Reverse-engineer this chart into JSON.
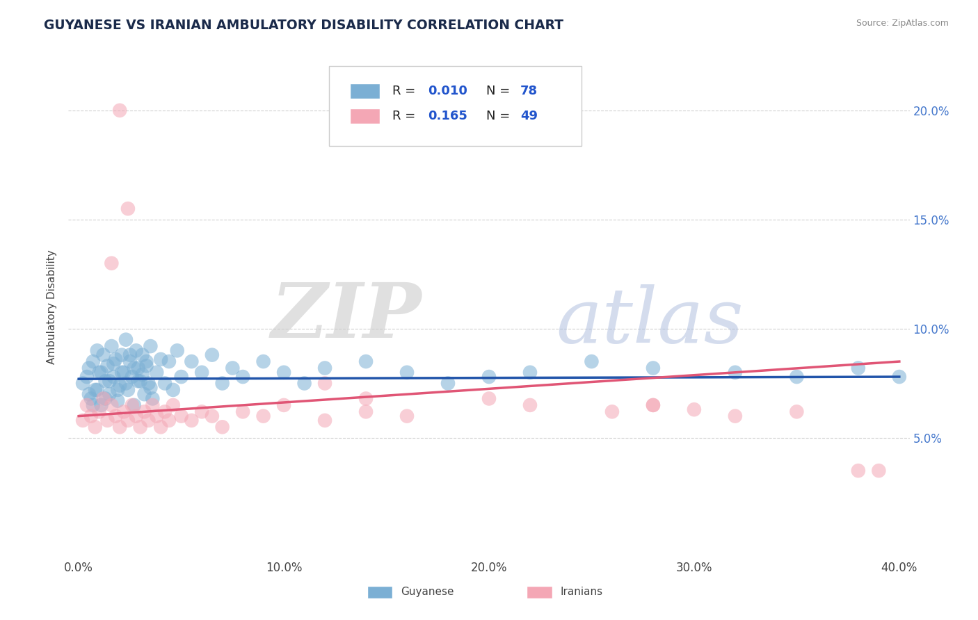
{
  "title": "GUYANESE VS IRANIAN AMBULATORY DISABILITY CORRELATION CHART",
  "source": "Source: ZipAtlas.com",
  "ylabel": "Ambulatory Disability",
  "xlim": [
    -0.005,
    0.405
  ],
  "ylim": [
    -0.005,
    0.225
  ],
  "xticks": [
    0.0,
    0.1,
    0.2,
    0.3,
    0.4
  ],
  "xtick_labels": [
    "0.0%",
    "10.0%",
    "20.0%",
    "30.0%",
    "40.0%"
  ],
  "yticks": [
    0.05,
    0.1,
    0.15,
    0.2
  ],
  "ytick_labels": [
    "5.0%",
    "10.0%",
    "15.0%",
    "20.0%"
  ],
  "blue_color": "#7BAFD4",
  "pink_color": "#F4A7B5",
  "blue_line_color": "#2255AA",
  "pink_line_color": "#E05575",
  "blue_dash_color": "#8899BB",
  "watermark_zip": "ZIP",
  "watermark_atlas": "atlas",
  "blue_R": "0.010",
  "blue_N": "78",
  "pink_R": "0.165",
  "pink_N": "49",
  "blue_x": [
    0.002,
    0.004,
    0.005,
    0.006,
    0.007,
    0.008,
    0.009,
    0.01,
    0.011,
    0.012,
    0.013,
    0.014,
    0.015,
    0.016,
    0.017,
    0.018,
    0.019,
    0.02,
    0.021,
    0.022,
    0.023,
    0.024,
    0.025,
    0.026,
    0.027,
    0.028,
    0.029,
    0.03,
    0.031,
    0.032,
    0.033,
    0.034,
    0.035,
    0.036,
    0.038,
    0.04,
    0.042,
    0.044,
    0.046,
    0.048,
    0.05,
    0.055,
    0.06,
    0.065,
    0.07,
    0.075,
    0.08,
    0.09,
    0.1,
    0.11,
    0.005,
    0.007,
    0.009,
    0.011,
    0.013,
    0.015,
    0.017,
    0.019,
    0.021,
    0.023,
    0.025,
    0.027,
    0.029,
    0.031,
    0.033,
    0.035,
    0.12,
    0.14,
    0.16,
    0.18,
    0.2,
    0.22,
    0.25,
    0.28,
    0.32,
    0.35,
    0.38,
    0.4
  ],
  "blue_y": [
    0.075,
    0.078,
    0.082,
    0.068,
    0.085,
    0.072,
    0.09,
    0.08,
    0.065,
    0.088,
    0.076,
    0.083,
    0.07,
    0.092,
    0.078,
    0.086,
    0.067,
    0.074,
    0.088,
    0.08,
    0.095,
    0.072,
    0.085,
    0.078,
    0.065,
    0.09,
    0.082,
    0.076,
    0.088,
    0.07,
    0.083,
    0.075,
    0.092,
    0.068,
    0.08,
    0.086,
    0.075,
    0.085,
    0.072,
    0.09,
    0.078,
    0.085,
    0.08,
    0.088,
    0.075,
    0.082,
    0.078,
    0.085,
    0.08,
    0.075,
    0.07,
    0.065,
    0.072,
    0.08,
    0.068,
    0.076,
    0.084,
    0.072,
    0.08,
    0.075,
    0.088,
    0.082,
    0.076,
    0.079,
    0.085,
    0.073,
    0.082,
    0.085,
    0.08,
    0.075,
    0.078,
    0.08,
    0.085,
    0.082,
    0.08,
    0.078,
    0.082,
    0.078
  ],
  "pink_x": [
    0.002,
    0.004,
    0.006,
    0.008,
    0.01,
    0.012,
    0.014,
    0.016,
    0.018,
    0.02,
    0.022,
    0.024,
    0.026,
    0.028,
    0.03,
    0.032,
    0.034,
    0.036,
    0.038,
    0.04,
    0.042,
    0.044,
    0.046,
    0.05,
    0.055,
    0.06,
    0.065,
    0.07,
    0.08,
    0.09,
    0.1,
    0.12,
    0.14,
    0.16,
    0.2,
    0.22,
    0.26,
    0.28,
    0.3,
    0.32,
    0.35,
    0.38,
    0.39,
    0.016,
    0.02,
    0.024,
    0.12,
    0.14,
    0.28
  ],
  "pink_y": [
    0.058,
    0.065,
    0.06,
    0.055,
    0.062,
    0.068,
    0.058,
    0.065,
    0.06,
    0.055,
    0.062,
    0.058,
    0.065,
    0.06,
    0.055,
    0.062,
    0.058,
    0.065,
    0.06,
    0.055,
    0.062,
    0.058,
    0.065,
    0.06,
    0.058,
    0.062,
    0.06,
    0.055,
    0.062,
    0.06,
    0.065,
    0.058,
    0.062,
    0.06,
    0.068,
    0.065,
    0.062,
    0.065,
    0.063,
    0.06,
    0.062,
    0.035,
    0.035,
    0.13,
    0.2,
    0.155,
    0.075,
    0.068,
    0.065
  ],
  "blue_line_x0": 0.0,
  "blue_line_x1": 0.4,
  "blue_line_y0": 0.077,
  "blue_line_y1": 0.078,
  "pink_line_x0": 0.0,
  "pink_line_x1": 0.4,
  "pink_line_y0": 0.06,
  "pink_line_y1": 0.085
}
